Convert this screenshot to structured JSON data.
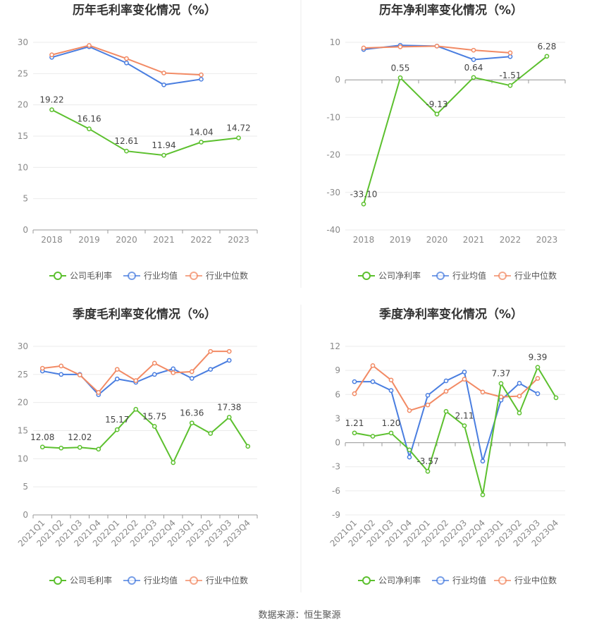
{
  "source": "数据来源：恒生聚源",
  "colors": {
    "company": "#5cc02e",
    "industry_avg": "#4a7ee0",
    "industry_median": "#f28a64"
  },
  "chart_data": [
    {
      "id": "annual-gross",
      "type": "line",
      "title": "历年毛利率变化情况（%）",
      "categories": [
        "2018",
        "2019",
        "2020",
        "2021",
        "2022",
        "2023"
      ],
      "ylim": [
        0,
        30
      ],
      "yticks": [
        0,
        5,
        10,
        15,
        20,
        25,
        30
      ],
      "legend": [
        "公司毛利率",
        "行业均值",
        "行业中位数"
      ],
      "series": [
        {
          "name": "公司毛利率",
          "key": "company",
          "values": [
            19.22,
            16.16,
            12.61,
            11.94,
            14.04,
            14.72
          ],
          "labels": [
            "19.22",
            "16.16",
            "12.61",
            "11.94",
            "14.04",
            "14.72"
          ]
        },
        {
          "name": "行业均值",
          "key": "industry_avg",
          "values": [
            27.6,
            29.3,
            26.7,
            23.2,
            24.1,
            null
          ]
        },
        {
          "name": "行业中位数",
          "key": "industry_median",
          "values": [
            28.0,
            29.5,
            27.4,
            25.1,
            24.8,
            null
          ]
        }
      ]
    },
    {
      "id": "annual-net",
      "type": "line",
      "title": "历年净利率变化情况（%）",
      "categories": [
        "2018",
        "2019",
        "2020",
        "2021",
        "2022",
        "2023"
      ],
      "ylim": [
        -40,
        10
      ],
      "yticks": [
        -40,
        -30,
        -20,
        -10,
        0,
        10
      ],
      "legend": [
        "公司净利率",
        "行业均值",
        "行业中位数"
      ],
      "series": [
        {
          "name": "公司净利率",
          "key": "company",
          "values": [
            -33.1,
            0.55,
            -9.13,
            0.64,
            -1.51,
            6.28
          ],
          "labels": [
            "-33.10",
            "0.55",
            "-9.13",
            "0.64",
            "-1.51",
            "6.28"
          ]
        },
        {
          "name": "行业均值",
          "key": "industry_avg",
          "values": [
            8.1,
            9.2,
            9.0,
            5.4,
            6.2,
            null
          ]
        },
        {
          "name": "行业中位数",
          "key": "industry_median",
          "values": [
            8.5,
            8.8,
            9.0,
            7.9,
            7.2,
            null
          ]
        }
      ]
    },
    {
      "id": "quarterly-gross",
      "type": "line",
      "title": "季度毛利率变化情况（%）",
      "categories": [
        "2021Q1",
        "2021Q2",
        "2021Q3",
        "2021Q4",
        "2022Q1",
        "2022Q2",
        "2022Q3",
        "2022Q4",
        "2023Q1",
        "2023Q2",
        "2023Q3",
        "2023Q4"
      ],
      "ylim": [
        0,
        30
      ],
      "yticks": [
        0,
        5,
        10,
        15,
        20,
        25,
        30
      ],
      "legend": [
        "公司毛利率",
        "行业均值",
        "行业中位数"
      ],
      "series": [
        {
          "name": "公司毛利率",
          "key": "company",
          "values": [
            12.08,
            11.9,
            12.02,
            11.7,
            15.17,
            18.8,
            15.75,
            9.3,
            16.36,
            14.5,
            17.38,
            12.2
          ],
          "labels": [
            "12.08",
            null,
            "12.02",
            null,
            "15.17",
            null,
            "15.75",
            null,
            "16.36",
            null,
            "17.38",
            null
          ]
        },
        {
          "name": "行业均值",
          "key": "industry_avg",
          "values": [
            25.6,
            25.0,
            25.0,
            21.4,
            24.2,
            23.6,
            25.0,
            26.0,
            24.3,
            25.9,
            27.5,
            null
          ]
        },
        {
          "name": "行业中位数",
          "key": "industry_median",
          "values": [
            26.1,
            26.5,
            24.9,
            21.8,
            25.9,
            23.9,
            27.0,
            25.3,
            25.5,
            29.1,
            29.1,
            null
          ]
        }
      ]
    },
    {
      "id": "quarterly-net",
      "type": "line",
      "title": "季度净利率变化情况（%）",
      "categories": [
        "2021Q1",
        "2021Q2",
        "2021Q3",
        "2021Q4",
        "2022Q1",
        "2022Q2",
        "2022Q3",
        "2022Q4",
        "2023Q1",
        "2023Q2",
        "2023Q3",
        "2023Q4"
      ],
      "ylim": [
        -9,
        12
      ],
      "yticks": [
        -9,
        -6,
        -3,
        0,
        3,
        6,
        9,
        12
      ],
      "legend": [
        "公司净利率",
        "行业均值",
        "行业中位数"
      ],
      "series": [
        {
          "name": "公司净利率",
          "key": "company",
          "values": [
            1.21,
            0.8,
            1.2,
            -0.9,
            -3.57,
            3.9,
            2.11,
            -6.5,
            7.37,
            3.7,
            9.39,
            5.6
          ],
          "labels": [
            "1.21",
            null,
            "1.20",
            null,
            "-3.57",
            null,
            "2.11",
            null,
            "7.37",
            null,
            "9.39",
            null
          ]
        },
        {
          "name": "行业均值",
          "key": "industry_avg",
          "values": [
            7.6,
            7.6,
            6.5,
            -1.8,
            5.9,
            7.7,
            8.8,
            -2.3,
            5.3,
            7.4,
            6.1,
            null
          ]
        },
        {
          "name": "行业中位数",
          "key": "industry_median",
          "values": [
            6.1,
            9.6,
            7.8,
            4.0,
            4.7,
            6.4,
            7.9,
            6.3,
            5.7,
            5.8,
            8.0,
            null
          ]
        }
      ]
    }
  ]
}
